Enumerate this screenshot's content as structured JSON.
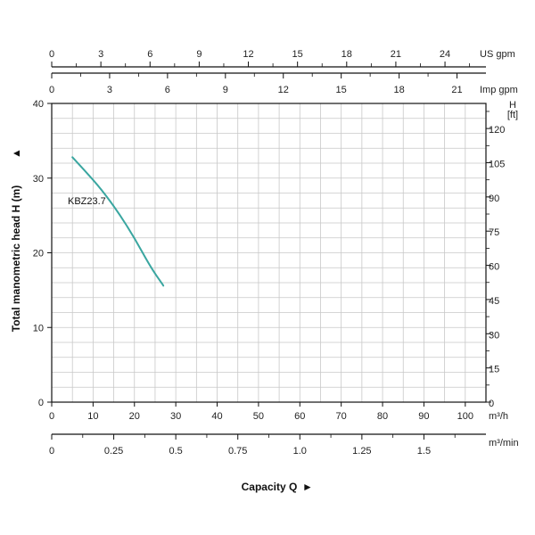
{
  "chart_data": {
    "type": "line",
    "colors": {
      "grid": "#c8c8c8",
      "axis": "#111111",
      "curve": "#3aa6a0",
      "background": "#ffffff"
    },
    "grid": true,
    "series": [
      {
        "name": "KBZ23.7",
        "x": [
          5,
          8,
          12,
          16,
          20,
          24,
          27
        ],
        "y": [
          32.8,
          31.0,
          28.5,
          25.5,
          22.0,
          18.0,
          15.6
        ]
      }
    ],
    "axes": {
      "x_bottom": {
        "unit": "m³/h",
        "range": [
          0,
          105
        ],
        "ticks": [
          "0",
          "10",
          "20",
          "30",
          "40",
          "50",
          "60",
          "70",
          "80",
          "90",
          "100"
        ]
      },
      "x_flow_min": {
        "unit": "m³/min",
        "range": [
          0,
          1.75
        ],
        "ticks": [
          "0",
          "0.25",
          "0.5",
          "0.75",
          "1.0",
          "1.25",
          "1.5"
        ]
      },
      "x_top_us": {
        "unit": "US gpm",
        "range": [
          0,
          26.5
        ],
        "ticks": [
          "0",
          "3",
          "6",
          "9",
          "12",
          "15",
          "18",
          "21",
          "24"
        ]
      },
      "x_top_imp": {
        "unit": "Imp gpm",
        "range": [
          0,
          22.5
        ],
        "ticks": [
          "0",
          "3",
          "6",
          "9",
          "12",
          "15",
          "18",
          "21"
        ]
      },
      "y_left": {
        "unit": "m",
        "range": [
          0,
          40
        ],
        "ticks": [
          "0",
          "10",
          "20",
          "30",
          "40"
        ]
      },
      "y_right": {
        "unit_h": "H",
        "unit_ft": "[ft]",
        "range": [
          0,
          131
        ],
        "ticks": [
          "0",
          "15",
          "30",
          "45",
          "60",
          "75",
          "90",
          "105",
          "120"
        ]
      }
    },
    "labels": {
      "y_title": "Total manometric head H (m)",
      "x_title": "Capacity Q",
      "y_arrow": "▲",
      "x_arrow": "►"
    }
  }
}
